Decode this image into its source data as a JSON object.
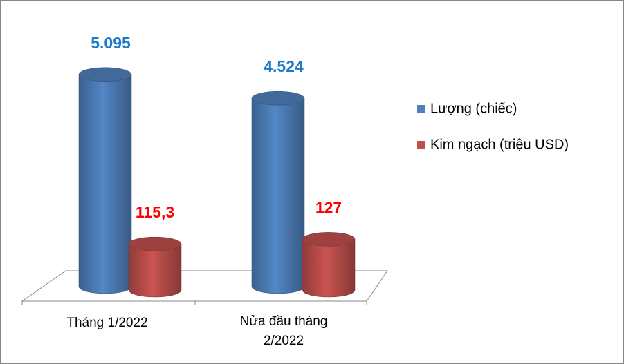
{
  "chart_data": {
    "type": "bar",
    "categories": [
      "Tháng 1/2022",
      "Nửa đầu tháng 2/2022"
    ],
    "series": [
      {
        "name": "Lượng (chiếc)",
        "color": "#4f81bd",
        "label_color": "#1f7ac8",
        "values": [
          5095,
          4524
        ],
        "value_labels": [
          "5.095",
          "4.524"
        ]
      },
      {
        "name": "Kim ngạch (triệu USD)",
        "color": "#c0504d",
        "label_color": "#ff0000",
        "axis": "y2",
        "values": [
          115.3,
          127
        ],
        "value_labels": [
          "115,3",
          "127"
        ]
      }
    ],
    "legend": "right"
  }
}
